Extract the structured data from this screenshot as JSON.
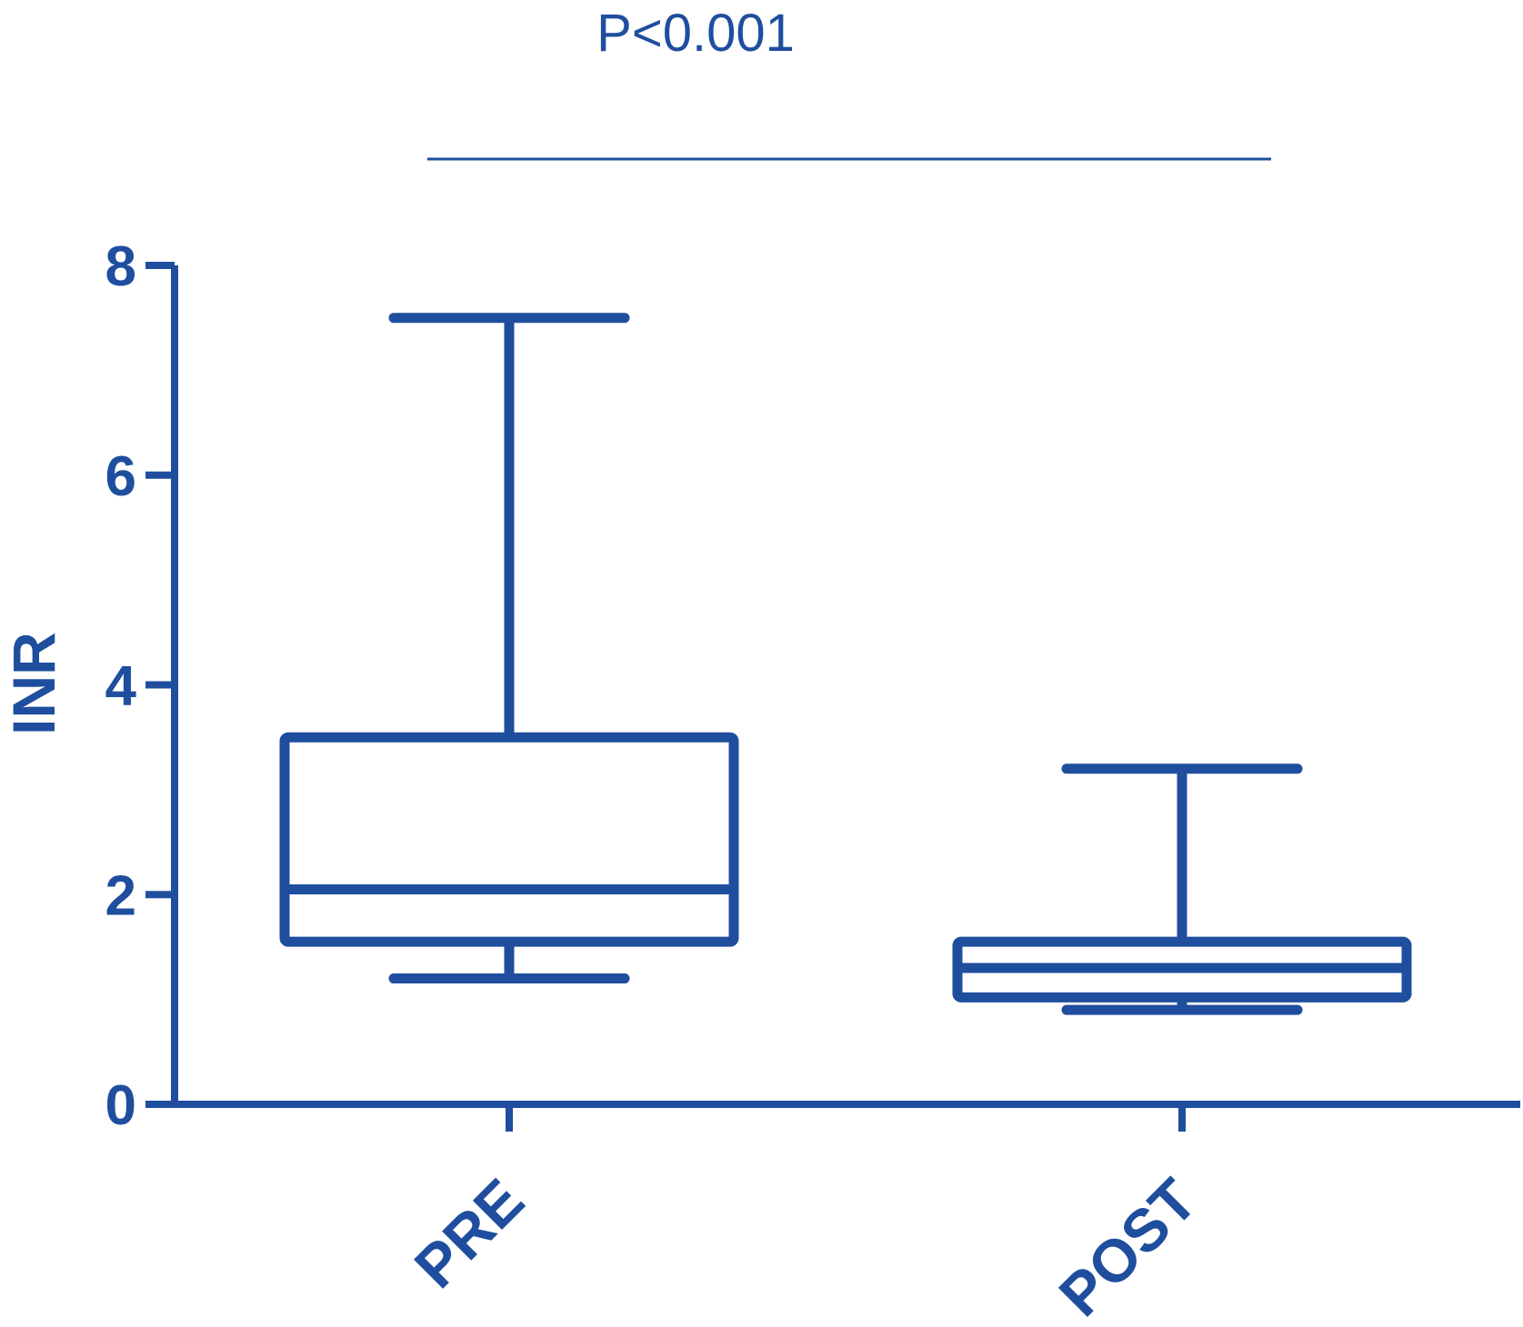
{
  "chart_data": {
    "type": "box",
    "categories": [
      "PRE",
      "POST"
    ],
    "boxes": [
      {
        "category": "PRE",
        "min": 1.2,
        "q1": 1.55,
        "median": 2.05,
        "q3": 3.5,
        "max": 7.5
      },
      {
        "category": "POST",
        "min": 0.9,
        "q1": 1.02,
        "median": 1.3,
        "q3": 1.55,
        "max": 3.2
      }
    ],
    "ylabel": "INR",
    "ylim": [
      0,
      8
    ],
    "yticks": [
      0,
      2,
      4,
      6,
      8
    ],
    "annotation": "P<0.001",
    "grid": false,
    "color": "#1f4e9e"
  }
}
